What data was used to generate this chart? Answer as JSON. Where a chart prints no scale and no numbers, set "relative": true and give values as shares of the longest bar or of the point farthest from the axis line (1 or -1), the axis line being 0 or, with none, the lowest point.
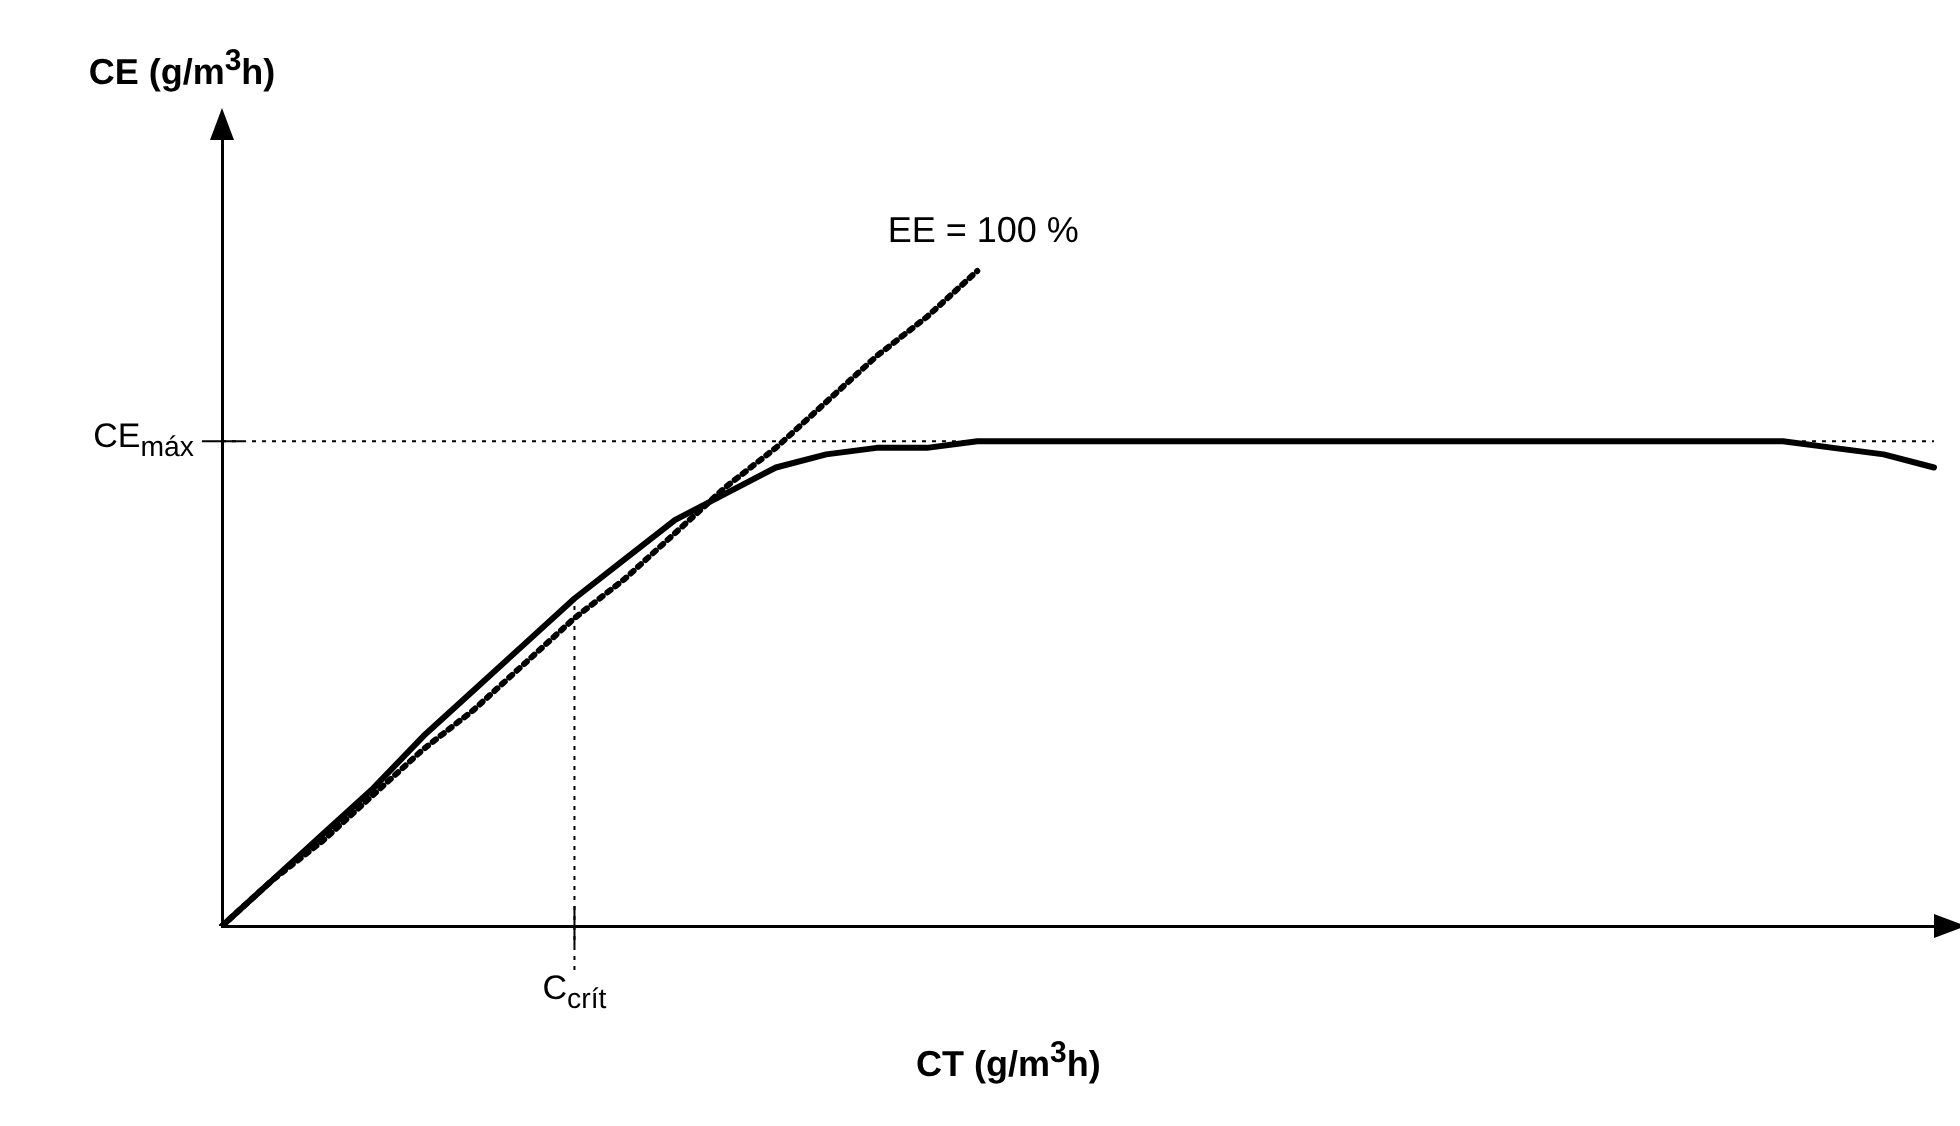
{
  "chart_data": {
    "type": "line",
    "relative": true,
    "xlabel": "CT (g/m$^{3}$h)",
    "ylabel": "CE (g/m$^{3}$h)",
    "tick_labels": false,
    "grid": false,
    "legend": false,
    "marker": "none",
    "categories": [
      null,
      null,
      null,
      null,
      null,
      null,
      null,
      null,
      null,
      null,
      null,
      null,
      null,
      null,
      null,
      null,
      null,
      null,
      null,
      null,
      null,
      null,
      null,
      null,
      null,
      null,
      null,
      null,
      null,
      null,
      null,
      null,
      null,
      null,
      null
    ],
    "series": [
      {
        "color": "#000000",
        "line_style": "solid",
        "values": [
          0,
          0.07,
          0.14,
          0.21,
          0.29,
          0.36,
          0.43,
          0.5,
          0.56,
          0.62,
          0.66,
          0.7,
          0.72,
          0.73,
          0.73,
          0.74,
          0.74,
          0.74,
          0.74,
          0.74,
          0.74,
          0.74,
          0.74,
          0.74,
          0.74,
          0.74,
          0.74,
          0.74,
          0.74,
          0.74,
          0.74,
          0.74,
          0.73,
          0.72,
          0.7
        ]
      },
      {
        "color": "#000000",
        "line_style": "dotted",
        "values": [
          0,
          0.07,
          0.13,
          0.2,
          0.27,
          0.33,
          0.4,
          0.47,
          0.53,
          0.6,
          0.67,
          0.73,
          0.8,
          0.87,
          0.93,
          1,
          null,
          null,
          null,
          null,
          null,
          null,
          null,
          null,
          null,
          null,
          null,
          null,
          null,
          null,
          null,
          null,
          null,
          null,
          null
        ]
      }
    ],
    "ref_lines": [
      {
        "axis": "y",
        "value": 0.74,
        "label": "CE$_{máx}$",
        "line_style": "dotted"
      }
    ],
    "annotations": [
      "EE = 100 %",
      {
        "text": "C$_{crít}$",
        "y": 0.5
      }
    ]
  }
}
